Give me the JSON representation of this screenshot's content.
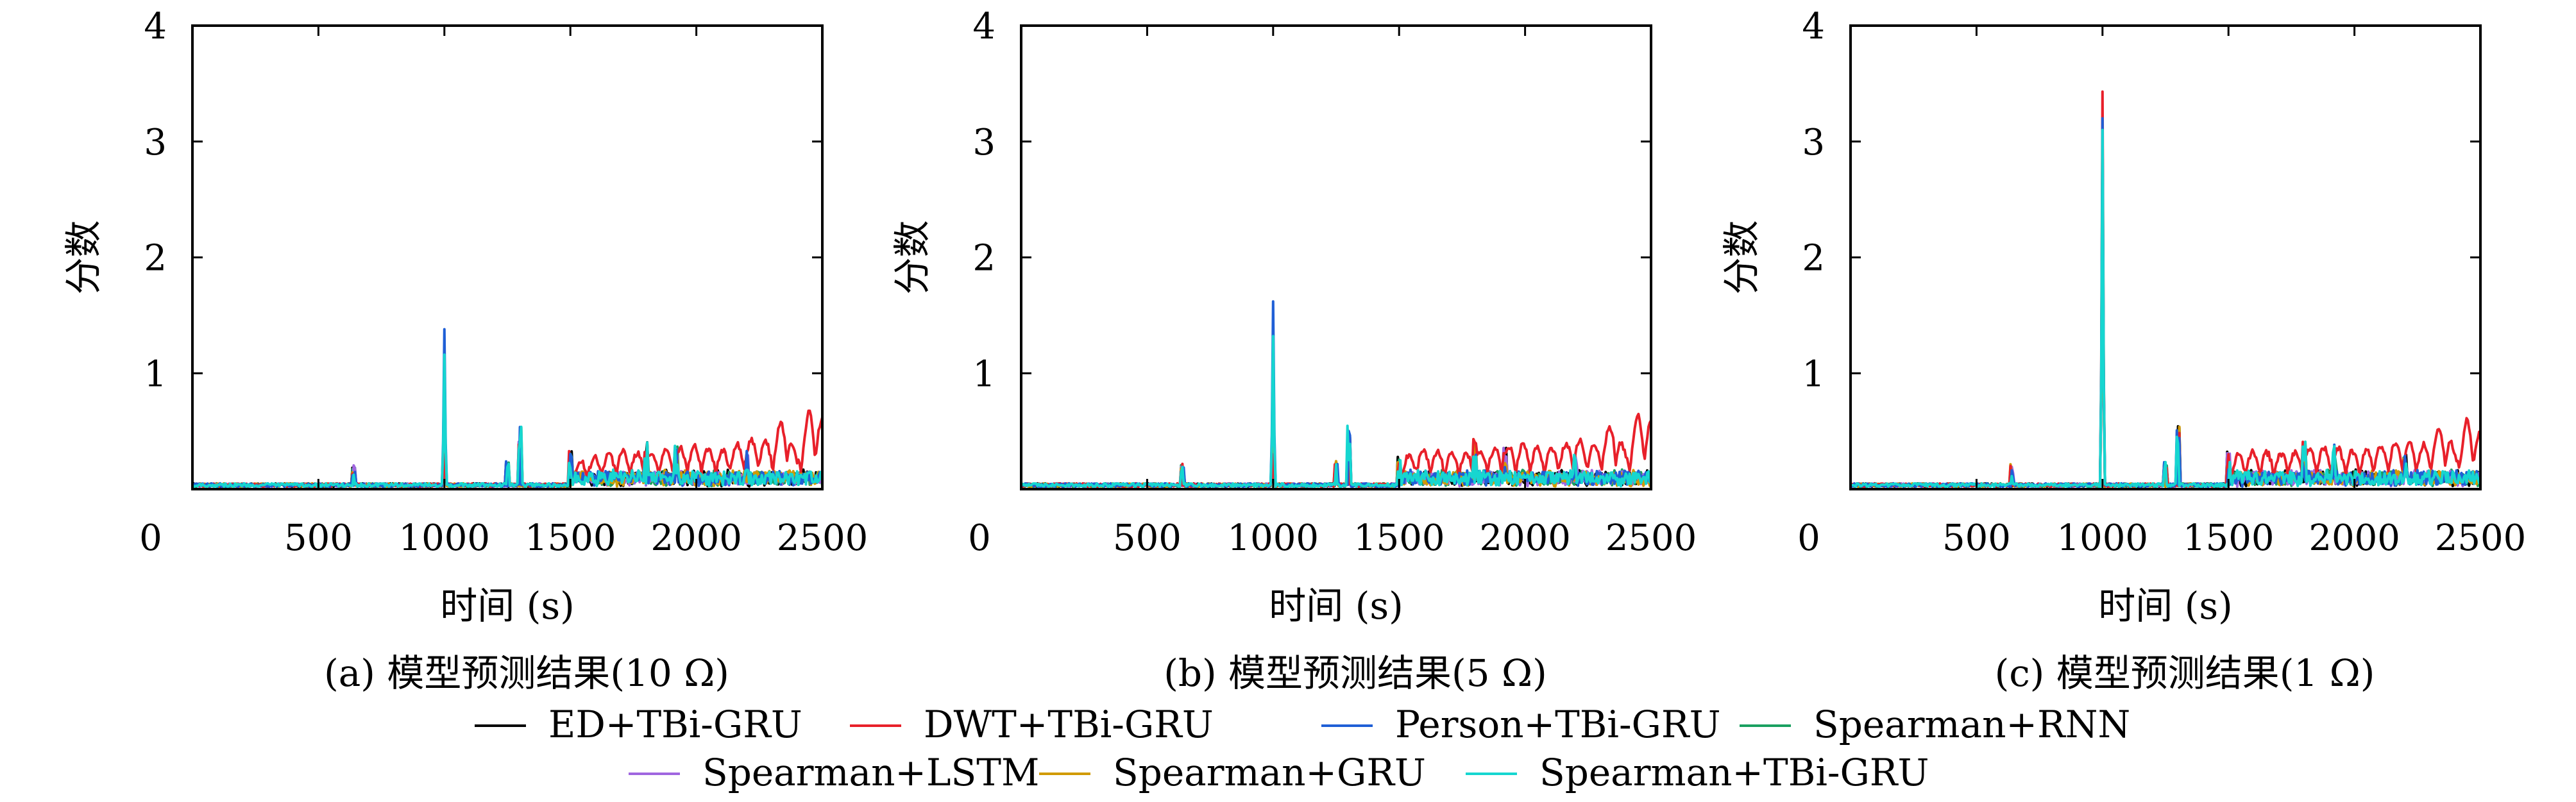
{
  "chart_data": {
    "type": "line",
    "x_label": "时间 (s)",
    "y_label": "分数",
    "xlim": [
      0,
      2500
    ],
    "ylim": [
      0,
      4
    ],
    "x_ticks": [
      "0",
      "500",
      "1000",
      "1500",
      "2000",
      "2500"
    ],
    "y_ticks": [
      "1",
      "2",
      "3",
      "4"
    ],
    "grid": false,
    "legend_position": "bottom",
    "legend": [
      {
        "name": "ED+TBi-GRU",
        "color": "#000000"
      },
      {
        "name": "DWT+TBi-GRU",
        "color": "#e8202a"
      },
      {
        "name": "Person+TBi-GRU",
        "color": "#1f5fd6"
      },
      {
        "name": "Spearman+RNN",
        "color": "#1aa060"
      },
      {
        "name": "Spearman+LSTM",
        "color": "#a066e0"
      },
      {
        "name": "Spearman+GRU",
        "color": "#d19a00"
      },
      {
        "name": "Spearman+TBi-GRU",
        "color": "#16d6d0"
      }
    ],
    "panels": [
      {
        "caption": "(a) 模型预测结果(10 Ω)",
        "peaks": {
          "ED+TBi-GRU": 0.5,
          "DWT+TBi-GRU": 0.3,
          "Person+TBi-GRU": 1.38,
          "Spearman+RNN": 0.95,
          "Spearman+LSTM": 0.9,
          "Spearman+GRU": 1.0,
          "Spearman+TBi-GRU": 1.16
        },
        "dwt_tail": [
          [
            1500,
            0.2
          ],
          [
            1600,
            0.25
          ],
          [
            1700,
            0.3
          ],
          [
            1800,
            0.28
          ],
          [
            1900,
            0.32
          ],
          [
            2000,
            0.35
          ],
          [
            2100,
            0.3
          ],
          [
            2200,
            0.4
          ],
          [
            2300,
            0.38
          ],
          [
            2350,
            0.62
          ],
          [
            2400,
            0.25
          ],
          [
            2450,
            0.68
          ],
          [
            2500,
            0.58
          ]
        ]
      },
      {
        "caption": "(b) 模型预测结果(5 Ω)",
        "peaks": {
          "ED+TBi-GRU": 0.55,
          "DWT+TBi-GRU": 0.3,
          "Person+TBi-GRU": 1.62,
          "Spearman+RNN": 1.0,
          "Spearman+LSTM": 1.0,
          "Spearman+GRU": 1.05,
          "Spearman+TBi-GRU": 1.32
        },
        "dwt_tail": [
          [
            1500,
            0.25
          ],
          [
            1600,
            0.32
          ],
          [
            1700,
            0.28
          ],
          [
            1800,
            0.3
          ],
          [
            1900,
            0.33
          ],
          [
            2000,
            0.36
          ],
          [
            2100,
            0.32
          ],
          [
            2200,
            0.4
          ],
          [
            2300,
            0.36
          ],
          [
            2350,
            0.58
          ],
          [
            2400,
            0.28
          ],
          [
            2450,
            0.64
          ],
          [
            2500,
            0.55
          ]
        ]
      },
      {
        "caption": "(c) 模型预测结果(1 Ω)",
        "peaks": {
          "ED+TBi-GRU": 2.9,
          "DWT+TBi-GRU": 3.43,
          "Person+TBi-GRU": 3.2,
          "Spearman+RNN": 2.7,
          "Spearman+LSTM": 2.6,
          "Spearman+GRU": 2.8,
          "Spearman+TBi-GRU": 3.1
        },
        "dwt_tail": [
          [
            1500,
            0.25
          ],
          [
            1600,
            0.3
          ],
          [
            1700,
            0.28
          ],
          [
            1800,
            0.3
          ],
          [
            1900,
            0.34
          ],
          [
            2000,
            0.3
          ],
          [
            2100,
            0.35
          ],
          [
            2200,
            0.38
          ],
          [
            2300,
            0.35
          ],
          [
            2350,
            0.55
          ],
          [
            2400,
            0.3
          ],
          [
            2450,
            0.6
          ],
          [
            2500,
            0.45
          ]
        ]
      }
    ]
  }
}
